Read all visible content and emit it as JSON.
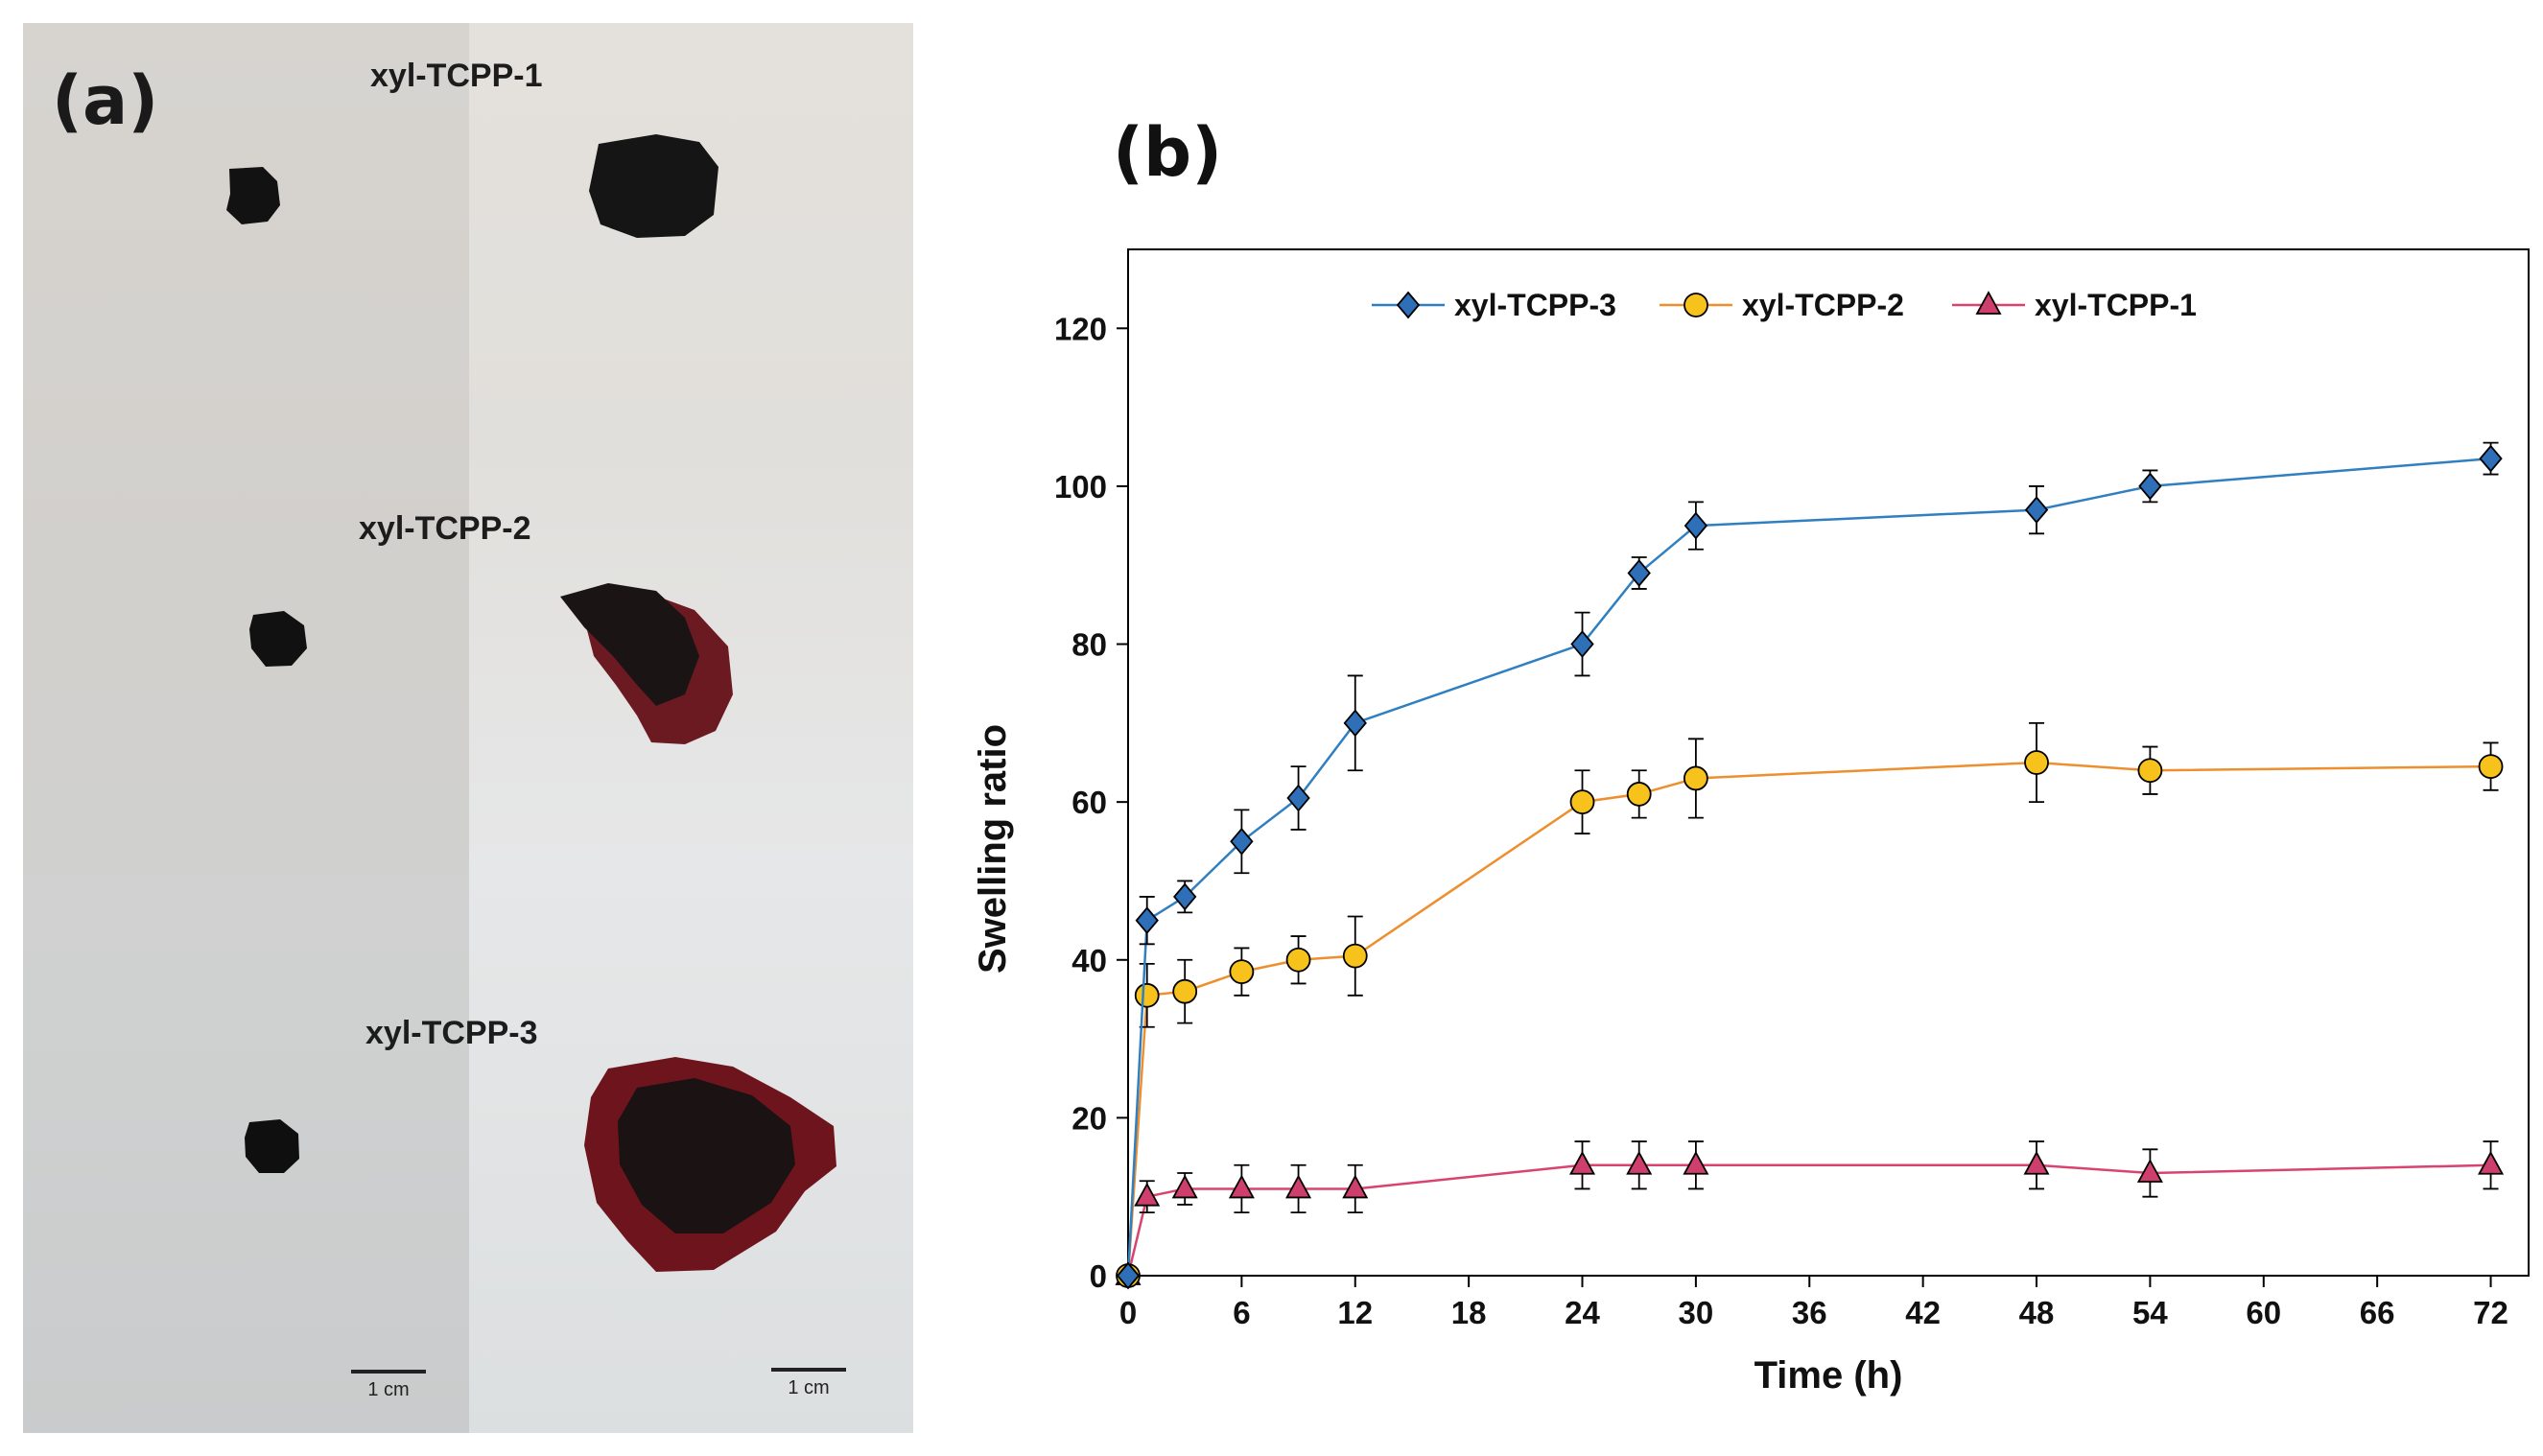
{
  "panel_a": {
    "label": "(a)",
    "samples": [
      "xyl-TCPP-1",
      "xyl-TCPP-2",
      "xyl-TCPP-3"
    ],
    "scale_bar_label": "1 cm"
  },
  "panel_b": {
    "label": "(b)"
  },
  "chart_data": {
    "type": "line",
    "title": "",
    "xlabel": "Time (h)",
    "ylabel": "Swelling ratio",
    "xlim": [
      0,
      74
    ],
    "ylim": [
      0,
      130
    ],
    "xticks": [
      0,
      6,
      12,
      18,
      24,
      30,
      36,
      42,
      48,
      54,
      60,
      66,
      72
    ],
    "yticks": [
      0,
      20,
      40,
      60,
      80,
      100,
      120
    ],
    "legend_position": "top",
    "series": [
      {
        "name": "xyl-TCPP-3",
        "color": "#2f7fc1",
        "marker": "diamond",
        "marker_fill": "#2e6fb7",
        "x": [
          0,
          1,
          3,
          6,
          9,
          12,
          24,
          27,
          30,
          48,
          54,
          72
        ],
        "y": [
          0,
          45,
          48,
          55,
          60.5,
          70,
          80,
          89,
          95,
          97,
          100,
          103.5
        ],
        "err": [
          0,
          3,
          2,
          4,
          4,
          6,
          4,
          2,
          3,
          3,
          2,
          2
        ]
      },
      {
        "name": "xyl-TCPP-2",
        "color": "#ed8f2f",
        "marker": "circle",
        "marker_fill": "#f6c21b",
        "x": [
          0,
          1,
          3,
          6,
          9,
          12,
          24,
          27,
          30,
          48,
          54,
          72
        ],
        "y": [
          0,
          35.5,
          36,
          38.5,
          40,
          40.5,
          60,
          61,
          63,
          65,
          64,
          64.5
        ],
        "err": [
          0,
          4,
          4,
          3,
          3,
          5,
          4,
          3,
          5,
          5,
          3,
          3
        ]
      },
      {
        "name": "xyl-TCPP-1",
        "color": "#d9436f",
        "marker": "triangle",
        "marker_fill": "#cf3f6d",
        "x": [
          0,
          1,
          3,
          6,
          9,
          12,
          24,
          27,
          30,
          48,
          54,
          72
        ],
        "y": [
          0,
          10,
          11,
          11,
          11,
          11,
          14,
          14,
          14,
          14,
          13,
          14
        ],
        "err": [
          0,
          2,
          2,
          3,
          3,
          3,
          3,
          3,
          3,
          3,
          3,
          3
        ]
      }
    ]
  }
}
